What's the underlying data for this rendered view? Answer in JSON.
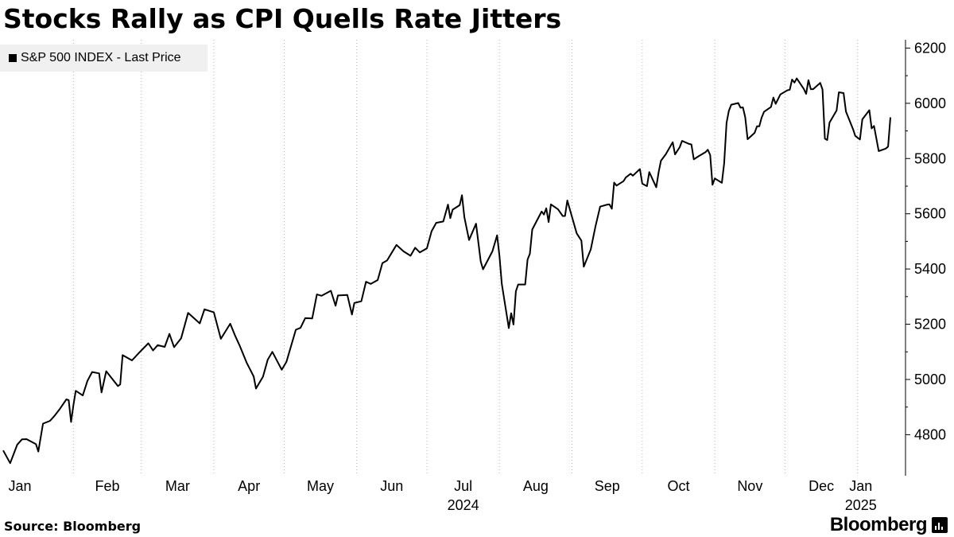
{
  "title": "Stocks Rally as CPI Quells Rate Jitters",
  "footer": {
    "source_label": "Source:",
    "source_name": "Bloomberg",
    "brand": "Bloomberg",
    "brand_logo_icon": "bloomberg-bars-icon"
  },
  "chart_data": {
    "type": "line",
    "title": "Stocks Rally as CPI Quells Rate Jitters",
    "xlabel": "",
    "ylabel": "",
    "y_axis_side": "right",
    "ylim": [
      4660,
      6230
    ],
    "yticks": [
      4800,
      5000,
      5200,
      5400,
      5600,
      5800,
      6000,
      6200
    ],
    "grid": "vertical dotted at month starts",
    "legend_placement": "top-left",
    "x_start": "2024-01-02",
    "x_end": "2025-01-15",
    "x_ticks": [
      {
        "date": "2024-01-01",
        "label": "Jan"
      },
      {
        "date": "2024-02-01",
        "label": "Feb"
      },
      {
        "date": "2024-03-01",
        "label": "Mar"
      },
      {
        "date": "2024-04-01",
        "label": "Apr"
      },
      {
        "date": "2024-05-01",
        "label": "May"
      },
      {
        "date": "2024-06-01",
        "label": "Jun"
      },
      {
        "date": "2024-07-01",
        "label": "Jul"
      },
      {
        "date": "2024-08-01",
        "label": "Aug"
      },
      {
        "date": "2024-09-01",
        "label": "Sep"
      },
      {
        "date": "2024-10-01",
        "label": "Oct"
      },
      {
        "date": "2024-11-01",
        "label": "Nov"
      },
      {
        "date": "2024-12-01",
        "label": "Dec"
      },
      {
        "date": "2025-01-01",
        "label": "Jan"
      }
    ],
    "year_labels": [
      {
        "date": "2024-07-01",
        "label": "2024"
      },
      {
        "date": "2025-01-01",
        "label": "2025"
      }
    ],
    "series": [
      {
        "name": "S&P 500 INDEX - Last Price",
        "color": "#000000",
        "points": [
          [
            "2024-01-02",
            4743
          ],
          [
            "2024-01-05",
            4697
          ],
          [
            "2024-01-08",
            4764
          ],
          [
            "2024-01-10",
            4783
          ],
          [
            "2024-01-12",
            4784
          ],
          [
            "2024-01-16",
            4766
          ],
          [
            "2024-01-17",
            4739
          ],
          [
            "2024-01-19",
            4840
          ],
          [
            "2024-01-22",
            4850
          ],
          [
            "2024-01-24",
            4869
          ],
          [
            "2024-01-26",
            4891
          ],
          [
            "2024-01-29",
            4928
          ],
          [
            "2024-01-30",
            4925
          ],
          [
            "2024-01-31",
            4846
          ],
          [
            "2024-02-01",
            4906
          ],
          [
            "2024-02-02",
            4959
          ],
          [
            "2024-02-05",
            4942
          ],
          [
            "2024-02-07",
            4995
          ],
          [
            "2024-02-09",
            5027
          ],
          [
            "2024-02-12",
            5022
          ],
          [
            "2024-02-13",
            4953
          ],
          [
            "2024-02-15",
            5030
          ],
          [
            "2024-02-20",
            4976
          ],
          [
            "2024-02-21",
            4982
          ],
          [
            "2024-02-22",
            5088
          ],
          [
            "2024-02-26",
            5069
          ],
          [
            "2024-02-29",
            5096
          ],
          [
            "2024-03-04",
            5131
          ],
          [
            "2024-03-06",
            5105
          ],
          [
            "2024-03-08",
            5124
          ],
          [
            "2024-03-11",
            5118
          ],
          [
            "2024-03-13",
            5165
          ],
          [
            "2024-03-15",
            5117
          ],
          [
            "2024-03-18",
            5149
          ],
          [
            "2024-03-21",
            5241
          ],
          [
            "2024-03-26",
            5203
          ],
          [
            "2024-03-28",
            5254
          ],
          [
            "2024-04-01",
            5243
          ],
          [
            "2024-04-04",
            5147
          ],
          [
            "2024-04-08",
            5202
          ],
          [
            "2024-04-10",
            5160
          ],
          [
            "2024-04-12",
            5123
          ],
          [
            "2024-04-15",
            5061
          ],
          [
            "2024-04-18",
            5011
          ],
          [
            "2024-04-19",
            4967
          ],
          [
            "2024-04-22",
            5010
          ],
          [
            "2024-04-24",
            5071
          ],
          [
            "2024-04-26",
            5100
          ],
          [
            "2024-04-30",
            5035
          ],
          [
            "2024-05-02",
            5064
          ],
          [
            "2024-05-06",
            5180
          ],
          [
            "2024-05-08",
            5187
          ],
          [
            "2024-05-10",
            5222
          ],
          [
            "2024-05-13",
            5221
          ],
          [
            "2024-05-15",
            5308
          ],
          [
            "2024-05-17",
            5303
          ],
          [
            "2024-05-21",
            5321
          ],
          [
            "2024-05-23",
            5267
          ],
          [
            "2024-05-24",
            5304
          ],
          [
            "2024-05-28",
            5306
          ],
          [
            "2024-05-30",
            5235
          ],
          [
            "2024-05-31",
            5277
          ],
          [
            "2024-06-03",
            5283
          ],
          [
            "2024-06-05",
            5354
          ],
          [
            "2024-06-07",
            5346
          ],
          [
            "2024-06-10",
            5360
          ],
          [
            "2024-06-12",
            5421
          ],
          [
            "2024-06-14",
            5431
          ],
          [
            "2024-06-17",
            5473
          ],
          [
            "2024-06-18",
            5487
          ],
          [
            "2024-06-21",
            5464
          ],
          [
            "2024-06-24",
            5448
          ],
          [
            "2024-06-26",
            5477
          ],
          [
            "2024-06-28",
            5460
          ],
          [
            "2024-07-01",
            5475
          ],
          [
            "2024-07-03",
            5537
          ],
          [
            "2024-07-05",
            5567
          ],
          [
            "2024-07-08",
            5572
          ],
          [
            "2024-07-10",
            5633
          ],
          [
            "2024-07-11",
            5584
          ],
          [
            "2024-07-12",
            5615
          ],
          [
            "2024-07-15",
            5631
          ],
          [
            "2024-07-16",
            5667
          ],
          [
            "2024-07-17",
            5588
          ],
          [
            "2024-07-19",
            5505
          ],
          [
            "2024-07-22",
            5564
          ],
          [
            "2024-07-24",
            5427
          ],
          [
            "2024-07-25",
            5399
          ],
          [
            "2024-07-29",
            5464
          ],
          [
            "2024-07-31",
            5522
          ],
          [
            "2024-08-01",
            5446
          ],
          [
            "2024-08-02",
            5346
          ],
          [
            "2024-08-05",
            5186
          ],
          [
            "2024-08-06",
            5240
          ],
          [
            "2024-08-07",
            5199
          ],
          [
            "2024-08-08",
            5319
          ],
          [
            "2024-08-09",
            5344
          ],
          [
            "2024-08-12",
            5344
          ],
          [
            "2024-08-13",
            5434
          ],
          [
            "2024-08-14",
            5455
          ],
          [
            "2024-08-15",
            5543
          ],
          [
            "2024-08-19",
            5608
          ],
          [
            "2024-08-20",
            5597
          ],
          [
            "2024-08-21",
            5620
          ],
          [
            "2024-08-22",
            5570
          ],
          [
            "2024-08-23",
            5634
          ],
          [
            "2024-08-26",
            5616
          ],
          [
            "2024-08-28",
            5592
          ],
          [
            "2024-08-29",
            5592
          ],
          [
            "2024-08-30",
            5648
          ],
          [
            "2024-09-03",
            5529
          ],
          [
            "2024-09-05",
            5503
          ],
          [
            "2024-09-06",
            5408
          ],
          [
            "2024-09-09",
            5471
          ],
          [
            "2024-09-11",
            5554
          ],
          [
            "2024-09-13",
            5626
          ],
          [
            "2024-09-16",
            5633
          ],
          [
            "2024-09-17",
            5634
          ],
          [
            "2024-09-18",
            5618
          ],
          [
            "2024-09-19",
            5713
          ],
          [
            "2024-09-20",
            5702
          ],
          [
            "2024-09-23",
            5718
          ],
          [
            "2024-09-24",
            5732
          ],
          [
            "2024-09-26",
            5745
          ],
          [
            "2024-09-27",
            5738
          ],
          [
            "2024-09-30",
            5762
          ],
          [
            "2024-10-01",
            5709
          ],
          [
            "2024-10-03",
            5700
          ],
          [
            "2024-10-04",
            5751
          ],
          [
            "2024-10-07",
            5696
          ],
          [
            "2024-10-08",
            5751
          ],
          [
            "2024-10-09",
            5792
          ],
          [
            "2024-10-11",
            5815
          ],
          [
            "2024-10-14",
            5859
          ],
          [
            "2024-10-15",
            5815
          ],
          [
            "2024-10-17",
            5841
          ],
          [
            "2024-10-18",
            5864
          ],
          [
            "2024-10-21",
            5853
          ],
          [
            "2024-10-22",
            5851
          ],
          [
            "2024-10-23",
            5797
          ],
          [
            "2024-10-25",
            5808
          ],
          [
            "2024-10-28",
            5823
          ],
          [
            "2024-10-29",
            5832
          ],
          [
            "2024-10-30",
            5813
          ],
          [
            "2024-10-31",
            5705
          ],
          [
            "2024-11-01",
            5728
          ],
          [
            "2024-11-04",
            5712
          ],
          [
            "2024-11-05",
            5783
          ],
          [
            "2024-11-06",
            5929
          ],
          [
            "2024-11-07",
            5973
          ],
          [
            "2024-11-08",
            5995
          ],
          [
            "2024-11-11",
            6001
          ],
          [
            "2024-11-12",
            5984
          ],
          [
            "2024-11-13",
            5985
          ],
          [
            "2024-11-14",
            5949
          ],
          [
            "2024-11-15",
            5870
          ],
          [
            "2024-11-18",
            5893
          ],
          [
            "2024-11-19",
            5917
          ],
          [
            "2024-11-20",
            5917
          ],
          [
            "2024-11-21",
            5948
          ],
          [
            "2024-11-22",
            5969
          ],
          [
            "2024-11-25",
            5987
          ],
          [
            "2024-11-26",
            6021
          ],
          [
            "2024-11-27",
            5998
          ],
          [
            "2024-11-29",
            6032
          ],
          [
            "2024-12-02",
            6047
          ],
          [
            "2024-12-03",
            6049
          ],
          [
            "2024-12-04",
            6086
          ],
          [
            "2024-12-05",
            6075
          ],
          [
            "2024-12-06",
            6090
          ],
          [
            "2024-12-09",
            6052
          ],
          [
            "2024-12-10",
            6034
          ],
          [
            "2024-12-11",
            6084
          ],
          [
            "2024-12-12",
            6051
          ],
          [
            "2024-12-13",
            6051
          ],
          [
            "2024-12-16",
            6074
          ],
          [
            "2024-12-17",
            6050
          ],
          [
            "2024-12-18",
            5872
          ],
          [
            "2024-12-19",
            5867
          ],
          [
            "2024-12-20",
            5930
          ],
          [
            "2024-12-23",
            5974
          ],
          [
            "2024-12-24",
            6040
          ],
          [
            "2024-12-26",
            6037
          ],
          [
            "2024-12-27",
            5970
          ],
          [
            "2024-12-30",
            5907
          ],
          [
            "2024-12-31",
            5882
          ],
          [
            "2025-01-02",
            5869
          ],
          [
            "2025-01-03",
            5942
          ],
          [
            "2025-01-06",
            5975
          ],
          [
            "2025-01-07",
            5909
          ],
          [
            "2025-01-08",
            5918
          ],
          [
            "2025-01-10",
            5827
          ],
          [
            "2025-01-13",
            5836
          ],
          [
            "2025-01-14",
            5843
          ],
          [
            "2025-01-15",
            5949
          ]
        ]
      }
    ]
  }
}
